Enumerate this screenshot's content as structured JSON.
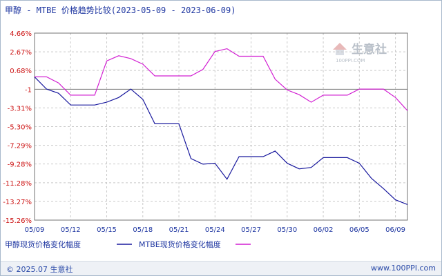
{
  "header": {
    "title": "甲醇 - MTBE 价格趋势比较(2023-05-09 - 2023-06-09)"
  },
  "watermark": {
    "name": "生意社",
    "url": "100PPI.COM"
  },
  "footer": {
    "copyright": "© 2025.07 生意社",
    "site": "www.100PPI.com"
  },
  "colors": {
    "series_1": "#1a1a9e",
    "series_2": "#d21fd2",
    "grid": "#c9c9c9",
    "axis": "#707070",
    "y_labels": "#cc1111"
  },
  "chart_data": {
    "type": "line",
    "title": "甲醇 - MTBE 价格趋势比较(2023-05-09 - 2023-06-09)",
    "xlabel": "",
    "ylabel": "",
    "ylim": [
      -15.26,
      4.66
    ],
    "y_ticks": [
      "4.66%",
      "2.67%",
      "0.68%",
      "-1",
      "-3.31%",
      "-5.30%",
      "-7.29%",
      "-9.28%",
      "-11.28%",
      "-13.27%",
      "-15.26%"
    ],
    "y_tick_values": [
      4.66,
      2.67,
      0.68,
      -1.32,
      -3.31,
      -5.3,
      -7.29,
      -9.28,
      -11.28,
      -13.27,
      -15.26
    ],
    "x_ticks": [
      "05/09",
      "05/12",
      "05/15",
      "05/18",
      "05/21",
      "05/24",
      "05/27",
      "05/30",
      "06/02",
      "06/05",
      "06/09"
    ],
    "x_tick_days": [
      0,
      3,
      6,
      9,
      12,
      15,
      18,
      21,
      24,
      27,
      30
    ],
    "grid": true,
    "legend_position": "bottom-left",
    "series": [
      {
        "name": "甲醇现货价格变化幅度",
        "color": "#1a1a9e",
        "points": [
          [
            0,
            0.0
          ],
          [
            1,
            -1.3
          ],
          [
            2,
            -1.75
          ],
          [
            3,
            -3.0
          ],
          [
            4,
            -3.0
          ],
          [
            5,
            -3.0
          ],
          [
            6,
            -2.7
          ],
          [
            7,
            -2.2
          ],
          [
            8,
            -1.3
          ],
          [
            9,
            -2.4
          ],
          [
            10,
            -5.0
          ],
          [
            11,
            -5.0
          ],
          [
            12,
            -5.0
          ],
          [
            13,
            -8.7
          ],
          [
            14,
            -9.3
          ],
          [
            15,
            -9.2
          ],
          [
            16,
            -10.9
          ],
          [
            17,
            -8.5
          ],
          [
            18,
            -8.5
          ],
          [
            19,
            -8.5
          ],
          [
            20,
            -7.9
          ],
          [
            21,
            -9.2
          ],
          [
            22,
            -9.8
          ],
          [
            23,
            -9.65
          ],
          [
            24,
            -8.6
          ],
          [
            25,
            -8.6
          ],
          [
            26,
            -8.6
          ],
          [
            27,
            -9.2
          ],
          [
            28,
            -10.8
          ],
          [
            29,
            -11.9
          ],
          [
            30,
            -13.1
          ],
          [
            31,
            -13.6
          ]
        ]
      },
      {
        "name": "MTBE现货价格变化幅度",
        "color": "#d21fd2",
        "points": [
          [
            0,
            0.0
          ],
          [
            1,
            0.0
          ],
          [
            2,
            -0.65
          ],
          [
            3,
            -1.95
          ],
          [
            4,
            -1.95
          ],
          [
            5,
            -1.95
          ],
          [
            6,
            1.7
          ],
          [
            7,
            2.25
          ],
          [
            8,
            1.95
          ],
          [
            9,
            1.35
          ],
          [
            10,
            0.1
          ],
          [
            11,
            0.1
          ],
          [
            12,
            0.1
          ],
          [
            13,
            0.1
          ],
          [
            14,
            0.8
          ],
          [
            15,
            2.7
          ],
          [
            16,
            3.0
          ],
          [
            17,
            2.2
          ],
          [
            18,
            2.2
          ],
          [
            19,
            2.2
          ],
          [
            20,
            -0.25
          ],
          [
            21,
            -1.4
          ],
          [
            22,
            -1.9
          ],
          [
            23,
            -2.7
          ],
          [
            24,
            -1.95
          ],
          [
            25,
            -1.95
          ],
          [
            26,
            -1.95
          ],
          [
            27,
            -1.3
          ],
          [
            28,
            -1.3
          ],
          [
            29,
            -1.3
          ],
          [
            30,
            -2.2
          ],
          [
            31,
            -3.6
          ]
        ]
      }
    ]
  }
}
